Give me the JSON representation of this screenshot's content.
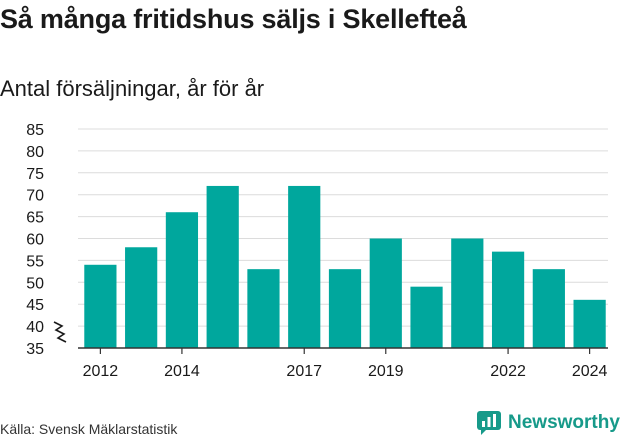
{
  "title": "Så många fritidshus säljs i Skellefteå",
  "subtitle": "Antal försäljningar, år för år",
  "source": "Källa: Svensk Mäklarstatistik",
  "brand": {
    "name": "Newsworthy",
    "icon": "newsworthy-logo-icon",
    "color": "#179a8a"
  },
  "chart_data": {
    "type": "bar",
    "categories": [
      "2012",
      "2013",
      "2014",
      "2015",
      "2016",
      "2017",
      "2018",
      "2019",
      "2020",
      "2021",
      "2022",
      "2023",
      "2024"
    ],
    "values": [
      54,
      58,
      66,
      72,
      53,
      72,
      53,
      60,
      49,
      60,
      57,
      53,
      46
    ],
    "x_tick_labels": [
      "2012",
      "",
      "2014",
      "",
      "",
      "2017",
      "",
      "2019",
      "",
      "",
      "2022",
      "",
      "2024"
    ],
    "y_ticks": [
      35,
      40,
      45,
      50,
      55,
      60,
      65,
      70,
      75,
      80,
      85
    ],
    "ylim": [
      35,
      85
    ],
    "axis_break": true,
    "bar_color": "#00a79d",
    "grid": true,
    "title": "Så många fritidshus säljs i Skellefteå",
    "subtitle": "Antal försäljningar, år för år",
    "xlabel": "",
    "ylabel": ""
  }
}
